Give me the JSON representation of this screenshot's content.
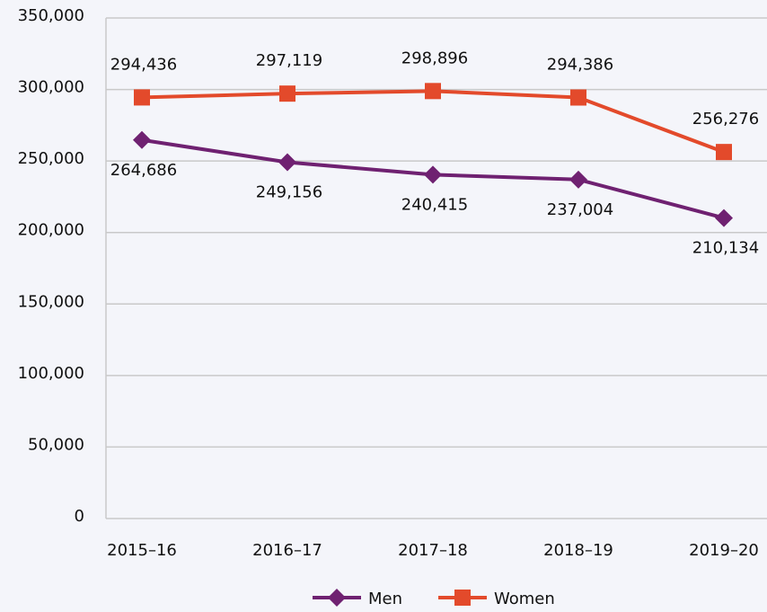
{
  "chart_data": {
    "type": "line",
    "categories": [
      "2015–16",
      "2016–17",
      "2017–18",
      "2018–19",
      "2019–20"
    ],
    "series": [
      {
        "name": "Men",
        "color": "#6f2171",
        "marker": "diamond",
        "values": [
          264686,
          249156,
          240415,
          237004,
          210134
        ],
        "value_labels": [
          "264,686",
          "249,156",
          "240,415",
          "237,004",
          "210,134"
        ],
        "label_position": "below"
      },
      {
        "name": "Women",
        "color": "#e34a2b",
        "marker": "square",
        "values": [
          294436,
          297119,
          298896,
          294386,
          256276
        ],
        "value_labels": [
          "294,436",
          "297,119",
          "298,896",
          "294,386",
          "256,276"
        ],
        "label_position": "above"
      }
    ],
    "ylim": [
      0,
      350000
    ],
    "yticks": [
      0,
      {
        "value": 50000,
        "label": "50,000"
      },
      {
        "value": 100000,
        "label": "100,000"
      },
      {
        "value": 150000,
        "label": "150,000"
      },
      {
        "value": 200000,
        "label": "200,000"
      },
      {
        "value": 250000,
        "label": "250,000"
      },
      {
        "value": 300000,
        "label": "300,000"
      },
      {
        "value": 350000,
        "label": "350,000"
      }
    ],
    "grid": true,
    "legend": "bottom"
  }
}
